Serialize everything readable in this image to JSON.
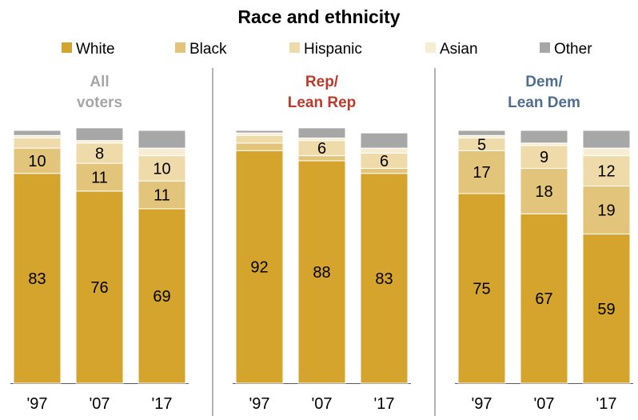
{
  "chart_data": {
    "type": "bar",
    "stacked": true,
    "title": "Race and ethnicity",
    "legend_position": "top",
    "legend": [
      "White",
      "Black",
      "Hispanic",
      "Asian",
      "Other"
    ],
    "colors": {
      "White": "#d4a42c",
      "Black": "#e2c47b",
      "Hispanic": "#efdba9",
      "Asian": "#f6edd2",
      "Other": "#a7a7a7",
      "divider": "#7f7f7f",
      "title_all": "#a6a6a6",
      "title_rep": "#bb3a2b",
      "title_dem": "#4f6e8e"
    },
    "categories": [
      "'97",
      "'07",
      "'17"
    ],
    "panels": [
      {
        "title_lines": [
          "All",
          "voters"
        ],
        "series": [
          {
            "name": "White",
            "values": [
              83,
              76,
              69
            ]
          },
          {
            "name": "Black",
            "values": [
              10,
              11,
              11
            ]
          },
          {
            "name": "Hispanic",
            "values": [
              4,
              8,
              10
            ]
          },
          {
            "name": "Asian",
            "values": [
              1,
              1,
              3
            ]
          },
          {
            "name": "Other",
            "values": [
              2,
              5,
              7
            ]
          }
        ],
        "labels": {
          "White": [
            "83",
            "76",
            "69"
          ],
          "Black": [
            "10",
            "11",
            "11"
          ],
          "Hispanic": [
            "",
            "8",
            "10"
          ]
        }
      },
      {
        "title_lines": [
          "Rep/",
          "Lean Rep"
        ],
        "series": [
          {
            "name": "White",
            "values": [
              92,
              88,
              83
            ]
          },
          {
            "name": "Black",
            "values": [
              3,
              2,
              2
            ]
          },
          {
            "name": "Hispanic",
            "values": [
              3,
              6,
              6
            ]
          },
          {
            "name": "Asian",
            "values": [
              1,
              1,
              2
            ]
          },
          {
            "name": "Other",
            "values": [
              1,
              4,
              6
            ]
          }
        ],
        "labels": {
          "White": [
            "92",
            "88",
            "83"
          ],
          "Hispanic": [
            "",
            "6",
            "6"
          ]
        }
      },
      {
        "title_lines": [
          "Dem/",
          "Lean Dem"
        ],
        "series": [
          {
            "name": "White",
            "values": [
              75,
              67,
              59
            ]
          },
          {
            "name": "Black",
            "values": [
              17,
              18,
              19
            ]
          },
          {
            "name": "Hispanic",
            "values": [
              5,
              9,
              12
            ]
          },
          {
            "name": "Asian",
            "values": [
              1,
              1,
              3
            ]
          },
          {
            "name": "Other",
            "values": [
              2,
              5,
              7
            ]
          }
        ],
        "labels": {
          "White": [
            "75",
            "67",
            "59"
          ],
          "Black": [
            "17",
            "18",
            "19"
          ],
          "Hispanic": [
            "5",
            "9",
            "12"
          ]
        }
      }
    ]
  }
}
